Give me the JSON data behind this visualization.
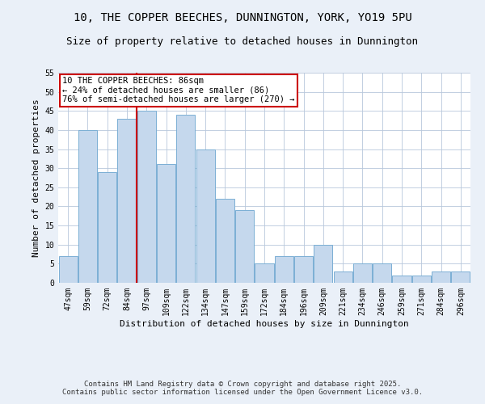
{
  "title": "10, THE COPPER BEECHES, DUNNINGTON, YORK, YO19 5PU",
  "subtitle": "Size of property relative to detached houses in Dunnington",
  "xlabel": "Distribution of detached houses by size in Dunnington",
  "ylabel": "Number of detached properties",
  "bar_labels": [
    "47sqm",
    "59sqm",
    "72sqm",
    "84sqm",
    "97sqm",
    "109sqm",
    "122sqm",
    "134sqm",
    "147sqm",
    "159sqm",
    "172sqm",
    "184sqm",
    "196sqm",
    "209sqm",
    "221sqm",
    "234sqm",
    "246sqm",
    "259sqm",
    "271sqm",
    "284sqm",
    "296sqm"
  ],
  "bar_values": [
    7,
    40,
    29,
    43,
    45,
    31,
    44,
    35,
    22,
    19,
    5,
    7,
    7,
    10,
    3,
    5,
    5,
    2,
    2,
    3,
    3
  ],
  "bar_color": "#c5d8ed",
  "bar_edge_color": "#7bafd4",
  "vline_x_index": 3,
  "vline_color": "#cc0000",
  "annotation_text": "10 THE COPPER BEECHES: 86sqm\n← 24% of detached houses are smaller (86)\n76% of semi-detached houses are larger (270) →",
  "annotation_box_color": "#cc0000",
  "ylim": [
    0,
    55
  ],
  "yticks": [
    0,
    5,
    10,
    15,
    20,
    25,
    30,
    35,
    40,
    45,
    50,
    55
  ],
  "bg_color": "#eaf0f8",
  "plot_bg_color": "#ffffff",
  "grid_color": "#b8c8dc",
  "footer": "Contains HM Land Registry data © Crown copyright and database right 2025.\nContains public sector information licensed under the Open Government Licence v3.0.",
  "title_fontsize": 10,
  "subtitle_fontsize": 9,
  "xlabel_fontsize": 8,
  "ylabel_fontsize": 8,
  "tick_fontsize": 7,
  "annotation_fontsize": 7.5,
  "footer_fontsize": 6.5
}
